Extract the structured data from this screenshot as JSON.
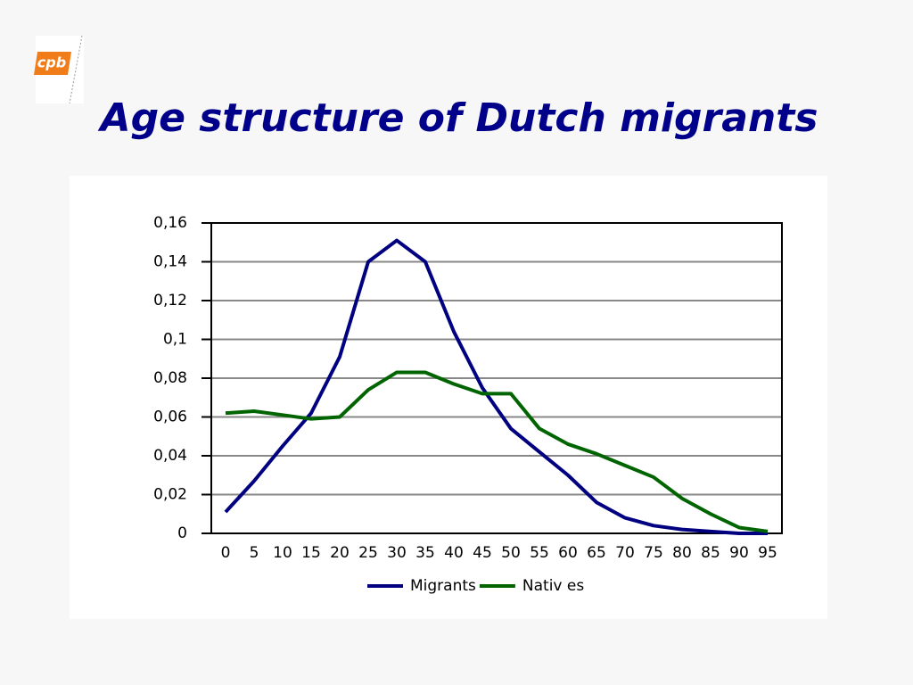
{
  "logo": "cpb",
  "chart_data": {
    "type": "line",
    "title": "Age structure of Dutch migrants",
    "categories": [
      "0",
      "5",
      "10",
      "15",
      "20",
      "25",
      "30",
      "35",
      "40",
      "45",
      "50",
      "55",
      "60",
      "65",
      "70",
      "75",
      "80",
      "85",
      "90",
      "95"
    ],
    "series": [
      {
        "name": "Migrants",
        "color": "#000080",
        "values": [
          0.011,
          0.027,
          0.045,
          0.062,
          0.091,
          0.14,
          0.151,
          0.14,
          0.104,
          0.075,
          0.054,
          0.042,
          0.03,
          0.016,
          0.008,
          0.004,
          0.002,
          0.001,
          0.0,
          0.0
        ]
      },
      {
        "name": "Nativ es",
        "color": "#006400",
        "values": [
          0.062,
          0.063,
          0.061,
          0.059,
          0.06,
          0.074,
          0.083,
          0.083,
          0.077,
          0.072,
          0.072,
          0.054,
          0.046,
          0.041,
          0.035,
          0.029,
          0.018,
          0.01,
          0.003,
          0.001
        ]
      }
    ],
    "ylim": [
      0,
      0.16
    ],
    "yticks": [
      0,
      {
        "value": 0.02,
        "label": "0,02"
      },
      {
        "value": 0.04,
        "label": "0,04"
      },
      {
        "value": 0.06,
        "label": "0,06"
      },
      {
        "value": 0.08,
        "label": "0,08"
      },
      {
        "value": 0.1,
        "label": "0,1"
      },
      {
        "value": 0.12,
        "label": "0,12"
      },
      {
        "value": 0.14,
        "label": "0,14"
      },
      {
        "value": 0.16,
        "label": "0,16"
      }
    ],
    "grid": true,
    "legend": "bottom"
  }
}
